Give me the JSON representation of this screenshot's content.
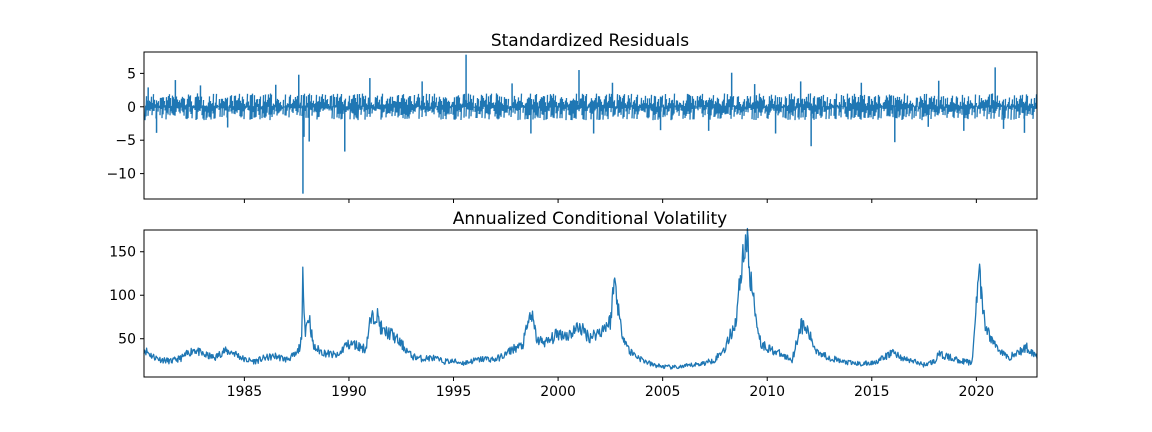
{
  "chart_data": [
    {
      "type": "line",
      "title": "Standardized Residuals",
      "xlabel": "",
      "ylabel": "",
      "xlim": [
        1980.2,
        2022.9
      ],
      "ylim": [
        -13.8,
        8.2
      ],
      "y_ticks": [
        5,
        0,
        -5,
        -10
      ],
      "y_tick_labels": [
        "5",
        "0",
        "−5",
        "−10"
      ],
      "x_ticks": [
        1985,
        1990,
        1995,
        2000,
        2005,
        2010,
        2015,
        2020
      ],
      "x_tick_labels_visible": false,
      "grid": false,
      "color": "#1f77b4",
      "baseline_band": [
        -2.0,
        2.0
      ],
      "spikes": [
        {
          "x": 1980.4,
          "y": 2.9
        },
        {
          "x": 1980.8,
          "y": -3.9
        },
        {
          "x": 1981.7,
          "y": 4.0
        },
        {
          "x": 1982.9,
          "y": 3.2
        },
        {
          "x": 1984.2,
          "y": -3.1
        },
        {
          "x": 1986.5,
          "y": 3.3
        },
        {
          "x": 1987.6,
          "y": 4.8
        },
        {
          "x": 1987.8,
          "y": -13.0
        },
        {
          "x": 1987.85,
          "y": -4.5
        },
        {
          "x": 1988.1,
          "y": -5.2
        },
        {
          "x": 1989.8,
          "y": -6.7
        },
        {
          "x": 1991.0,
          "y": 4.3
        },
        {
          "x": 1993.5,
          "y": 3.8
        },
        {
          "x": 1995.6,
          "y": 7.8
        },
        {
          "x": 1997.8,
          "y": 3.5
        },
        {
          "x": 1998.7,
          "y": -4.0
        },
        {
          "x": 2001.0,
          "y": 5.5
        },
        {
          "x": 2001.7,
          "y": -4.0
        },
        {
          "x": 2002.6,
          "y": 3.6
        },
        {
          "x": 2004.9,
          "y": -3.5
        },
        {
          "x": 2007.2,
          "y": -3.6
        },
        {
          "x": 2008.3,
          "y": 5.1
        },
        {
          "x": 2009.4,
          "y": 3.4
        },
        {
          "x": 2010.4,
          "y": -4.0
        },
        {
          "x": 2011.6,
          "y": 3.8
        },
        {
          "x": 2012.1,
          "y": -5.9
        },
        {
          "x": 2014.5,
          "y": 3.6
        },
        {
          "x": 2016.1,
          "y": -5.3
        },
        {
          "x": 2017.7,
          "y": -3.0
        },
        {
          "x": 2018.2,
          "y": 3.9
        },
        {
          "x": 2019.4,
          "y": -3.6
        },
        {
          "x": 2020.9,
          "y": 5.9
        },
        {
          "x": 2021.3,
          "y": -3.3
        },
        {
          "x": 2022.3,
          "y": -3.9
        }
      ]
    },
    {
      "type": "line",
      "title": "Annualized Conditional Volatility",
      "xlabel": "",
      "ylabel": "",
      "xlim": [
        1980.2,
        2022.9
      ],
      "ylim": [
        6,
        175
      ],
      "y_ticks": [
        50,
        100,
        150
      ],
      "y_tick_labels": [
        "50",
        "100",
        "150"
      ],
      "x_ticks": [
        1985,
        1990,
        1995,
        2000,
        2005,
        2010,
        2015,
        2020
      ],
      "x_tick_labels": [
        "1985",
        "1990",
        "1995",
        "2000",
        "2005",
        "2010",
        "2015",
        "2020"
      ],
      "grid": false,
      "color": "#1f77b4",
      "x": [
        1980.2,
        1980.6,
        1981.0,
        1981.5,
        1982.0,
        1982.6,
        1983.0,
        1983.6,
        1984.0,
        1984.5,
        1985.0,
        1985.5,
        1986.0,
        1986.5,
        1987.0,
        1987.5,
        1987.75,
        1987.8,
        1987.9,
        1988.1,
        1988.3,
        1988.8,
        1989.5,
        1989.8,
        1990.2,
        1990.8,
        1991.0,
        1991.3,
        1991.6,
        1992.0,
        1992.5,
        1993.0,
        1993.5,
        1994.0,
        1994.5,
        1995.0,
        1995.5,
        1996.0,
        1996.5,
        1997.0,
        1997.5,
        1997.8,
        1998.3,
        1998.7,
        1999.0,
        1999.5,
        2000.0,
        2000.5,
        2001.0,
        2001.5,
        2002.0,
        2002.5,
        2002.7,
        2003.0,
        2003.4,
        2004.0,
        2004.5,
        2005.0,
        2005.5,
        2006.0,
        2006.5,
        2007.0,
        2007.5,
        2008.0,
        2008.5,
        2008.8,
        2009.0,
        2009.2,
        2009.4,
        2009.7,
        2010.0,
        2010.4,
        2010.8,
        2011.2,
        2011.6,
        2011.9,
        2012.3,
        2012.8,
        2013.5,
        2014.0,
        2014.5,
        2015.0,
        2015.6,
        2016.0,
        2016.5,
        2017.0,
        2017.5,
        2018.0,
        2018.2,
        2018.8,
        2019.2,
        2019.8,
        2020.1,
        2020.2,
        2020.4,
        2020.7,
        2021.0,
        2021.5,
        2022.0,
        2022.4,
        2022.9
      ],
      "values": [
        38,
        30,
        26,
        24,
        28,
        38,
        32,
        28,
        36,
        34,
        26,
        24,
        28,
        30,
        26,
        32,
        48,
        132,
        60,
        76,
        40,
        34,
        30,
        42,
        44,
        38,
        68,
        80,
        58,
        56,
        44,
        30,
        27,
        28,
        24,
        24,
        22,
        25,
        27,
        26,
        32,
        38,
        42,
        80,
        48,
        46,
        56,
        54,
        64,
        52,
        58,
        70,
        120,
        62,
        36,
        26,
        20,
        18,
        17,
        18,
        20,
        22,
        26,
        40,
        70,
        140,
        168,
        120,
        85,
        44,
        40,
        35,
        30,
        26,
        66,
        60,
        38,
        30,
        24,
        22,
        21,
        22,
        28,
        35,
        27,
        24,
        20,
        24,
        32,
        28,
        25,
        22,
        130,
        110,
        66,
        50,
        40,
        28,
        34,
        40,
        30
      ]
    }
  ]
}
